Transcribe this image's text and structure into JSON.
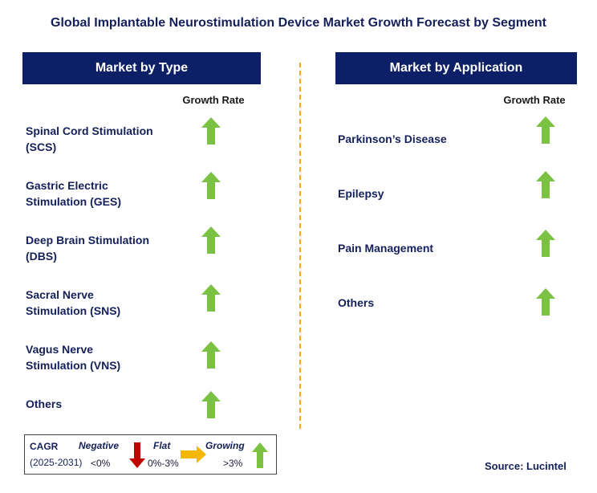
{
  "title": "Global Implantable Neurostimulation Device Market Growth Forecast by Segment",
  "left_panel": {
    "header": "Market by Type",
    "rate_label": "Growth Rate",
    "segments": [
      {
        "line1": "Spinal Cord Stimulation",
        "line2": "(SCS)",
        "trend": "growing"
      },
      {
        "line1": "Gastric Electric",
        "line2": "Stimulation (GES)",
        "trend": "growing"
      },
      {
        "line1": "Deep Brain Stimulation",
        "line2": "(DBS)",
        "trend": "growing"
      },
      {
        "line1": "Sacral Nerve",
        "line2": "Stimulation (SNS)",
        "trend": "growing"
      },
      {
        "line1": "Vagus Nerve",
        "line2": "Stimulation (VNS)",
        "trend": "growing"
      },
      {
        "line1": "Others",
        "line2": "",
        "trend": "growing"
      }
    ]
  },
  "right_panel": {
    "header": "Market by Application",
    "rate_label": "Growth Rate",
    "segments": [
      {
        "line1": "Parkinson’s Disease",
        "trend": "growing"
      },
      {
        "line1": "Epilepsy",
        "trend": "growing"
      },
      {
        "line1": "Pain Management",
        "trend": "growing"
      },
      {
        "line1": "Others",
        "trend": "growing"
      }
    ]
  },
  "legend": {
    "cagr": "CAGR",
    "period": "(2025-2031)",
    "negative_label": "Negative",
    "negative_range": "<0%",
    "flat_label": "Flat",
    "flat_range": "0%-3%",
    "growing_label": "Growing",
    "growing_range": ">3%"
  },
  "colors": {
    "header_bg": "#0d1f66",
    "growing": "#7bc142",
    "negative": "#c00000",
    "flat": "#f5b800",
    "divider": "#f5a623"
  },
  "source": "Source: Lucintel"
}
